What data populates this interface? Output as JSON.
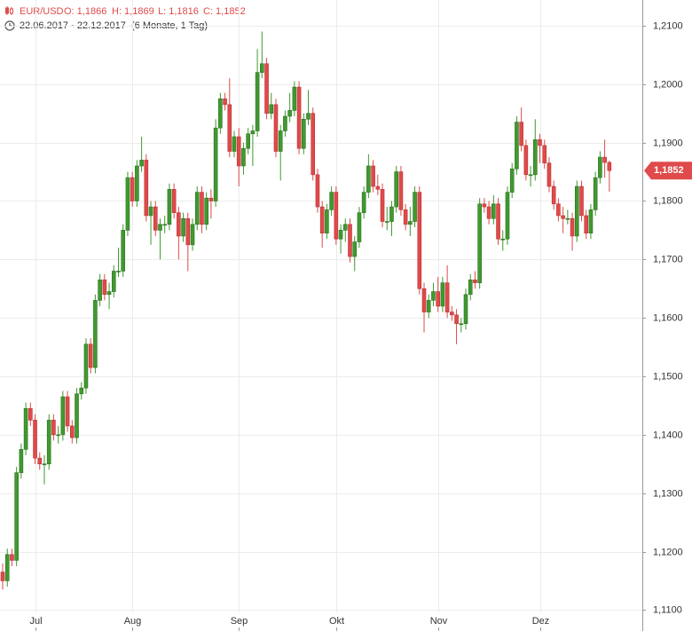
{
  "chart_data": {
    "type": "candlestick",
    "symbol": "EUR/USD",
    "open_label": "O: 1,1866",
    "high_label": "H: 1,1869",
    "low_label": "L: 1,1816",
    "close_label": "C: 1,1852",
    "date_range": "22.06.2017 - 22.12.2017",
    "period": "(6 Monate, 1 Tag)",
    "categories": [
      null,
      null,
      null,
      null,
      null,
      null,
      null,
      "Jul",
      null,
      null,
      null,
      null,
      null,
      null,
      null,
      null,
      null,
      null,
      null,
      null,
      null,
      null,
      null,
      null,
      null,
      null,
      null,
      null,
      "Aug",
      null,
      null,
      null,
      null,
      null,
      null,
      null,
      null,
      null,
      null,
      null,
      null,
      null,
      null,
      null,
      null,
      null,
      null,
      null,
      null,
      null,
      null,
      "Sep",
      null,
      null,
      null,
      null,
      null,
      null,
      null,
      null,
      null,
      null,
      null,
      null,
      null,
      null,
      null,
      null,
      null,
      null,
      null,
      null,
      "Okt",
      null,
      null,
      null,
      null,
      null,
      null,
      null,
      null,
      null,
      null,
      null,
      null,
      null,
      null,
      null,
      null,
      null,
      null,
      null,
      null,
      null,
      "Nov",
      null,
      null,
      null,
      null,
      null,
      null,
      null,
      null,
      null,
      null,
      null,
      null,
      null,
      null,
      null,
      null,
      null,
      null,
      null,
      null,
      null,
      "Dez",
      null,
      null,
      null,
      null,
      null,
      null,
      null,
      null,
      null,
      null,
      null,
      null,
      null,
      null,
      null
    ],
    "ohlc": [
      [
        1.1165,
        1.118,
        1.1135,
        1.115
      ],
      [
        1.115,
        1.1205,
        1.114,
        1.1195
      ],
      [
        1.1195,
        1.1205,
        1.1175,
        1.1185
      ],
      [
        1.1185,
        1.1345,
        1.1175,
        1.1335
      ],
      [
        1.1335,
        1.1385,
        1.1325,
        1.1375
      ],
      [
        1.1375,
        1.1455,
        1.1365,
        1.1445
      ],
      [
        1.1445,
        1.1455,
        1.1415,
        1.1425
      ],
      [
        1.1425,
        1.1435,
        1.135,
        1.136
      ],
      [
        1.136,
        1.137,
        1.134,
        1.135
      ],
      [
        1.135,
        1.1365,
        1.1315,
        1.135
      ],
      [
        1.135,
        1.1435,
        1.134,
        1.1425
      ],
      [
        1.1425,
        1.1435,
        1.139,
        1.14
      ],
      [
        1.14,
        1.1415,
        1.1385,
        1.14
      ],
      [
        1.14,
        1.1475,
        1.139,
        1.1465
      ],
      [
        1.1465,
        1.1475,
        1.1405,
        1.1415
      ],
      [
        1.1415,
        1.1425,
        1.1385,
        1.1395
      ],
      [
        1.1395,
        1.148,
        1.1385,
        1.147
      ],
      [
        1.147,
        1.149,
        1.146,
        1.148
      ],
      [
        1.148,
        1.1565,
        1.147,
        1.1555
      ],
      [
        1.1555,
        1.1565,
        1.1505,
        1.1515
      ],
      [
        1.1515,
        1.164,
        1.1505,
        1.163
      ],
      [
        1.163,
        1.1675,
        1.162,
        1.1665
      ],
      [
        1.1665,
        1.1675,
        1.163,
        1.164
      ],
      [
        1.164,
        1.166,
        1.1615,
        1.1645
      ],
      [
        1.1645,
        1.169,
        1.1635,
        1.168
      ],
      [
        1.168,
        1.172,
        1.167,
        1.168
      ],
      [
        1.168,
        1.176,
        1.167,
        1.175
      ],
      [
        1.175,
        1.185,
        1.174,
        1.184
      ],
      [
        1.184,
        1.185,
        1.179,
        1.18
      ],
      [
        1.18,
        1.187,
        1.179,
        1.186
      ],
      [
        1.186,
        1.191,
        1.185,
        1.187
      ],
      [
        1.187,
        1.188,
        1.1765,
        1.1775
      ],
      [
        1.1775,
        1.18,
        1.1725,
        1.179
      ],
      [
        1.179,
        1.18,
        1.174,
        1.175
      ],
      [
        1.175,
        1.177,
        1.17,
        1.176
      ],
      [
        1.176,
        1.1775,
        1.1745,
        1.176
      ],
      [
        1.176,
        1.183,
        1.175,
        1.182
      ],
      [
        1.182,
        1.183,
        1.177,
        1.178
      ],
      [
        1.178,
        1.179,
        1.17,
        1.174
      ],
      [
        1.174,
        1.178,
        1.173,
        1.177
      ],
      [
        1.177,
        1.178,
        1.168,
        1.1725
      ],
      [
        1.1725,
        1.177,
        1.1715,
        1.176
      ],
      [
        1.176,
        1.1825,
        1.175,
        1.1815
      ],
      [
        1.1815,
        1.1825,
        1.1745,
        1.176
      ],
      [
        1.176,
        1.1815,
        1.175,
        1.1805
      ],
      [
        1.1805,
        1.182,
        1.177,
        1.18
      ],
      [
        1.18,
        1.194,
        1.179,
        1.1925
      ],
      [
        1.1925,
        1.1985,
        1.1915,
        1.1975
      ],
      [
        1.1975,
        1.1985,
        1.1955,
        1.1965
      ],
      [
        1.1965,
        1.201,
        1.1875,
        1.1885
      ],
      [
        1.1885,
        1.192,
        1.1875,
        1.191
      ],
      [
        1.191,
        1.1925,
        1.1825,
        1.186
      ],
      [
        1.186,
        1.19,
        1.1845,
        1.189
      ],
      [
        1.189,
        1.1925,
        1.188,
        1.1915
      ],
      [
        1.1915,
        1.193,
        1.186,
        1.192
      ],
      [
        1.192,
        1.206,
        1.191,
        1.202
      ],
      [
        1.202,
        1.209,
        1.201,
        1.2035
      ],
      [
        1.2035,
        1.2045,
        1.194,
        1.195
      ],
      [
        1.195,
        1.1985,
        1.194,
        1.1965
      ],
      [
        1.1965,
        1.1975,
        1.1875,
        1.1885
      ],
      [
        1.1885,
        1.193,
        1.1835,
        1.192
      ],
      [
        1.192,
        1.1955,
        1.191,
        1.1945
      ],
      [
        1.1945,
        1.1985,
        1.1935,
        1.1955
      ],
      [
        1.1955,
        1.2005,
        1.1945,
        1.1995
      ],
      [
        1.1995,
        1.2005,
        1.188,
        1.189
      ],
      [
        1.189,
        1.195,
        1.188,
        1.194
      ],
      [
        1.194,
        1.199,
        1.193,
        1.195
      ],
      [
        1.195,
        1.196,
        1.1835,
        1.1845
      ],
      [
        1.1845,
        1.1855,
        1.178,
        1.179
      ],
      [
        1.179,
        1.18,
        1.172,
        1.1745
      ],
      [
        1.1745,
        1.1795,
        1.1735,
        1.1785
      ],
      [
        1.1785,
        1.1825,
        1.1775,
        1.1815
      ],
      [
        1.1815,
        1.1825,
        1.1725,
        1.1735
      ],
      [
        1.1735,
        1.176,
        1.171,
        1.175
      ],
      [
        1.175,
        1.177,
        1.173,
        1.176
      ],
      [
        1.176,
        1.177,
        1.1695,
        1.1705
      ],
      [
        1.1705,
        1.174,
        1.168,
        1.173
      ],
      [
        1.173,
        1.179,
        1.172,
        1.178
      ],
      [
        1.178,
        1.1825,
        1.177,
        1.1815
      ],
      [
        1.1815,
        1.188,
        1.1805,
        1.186
      ],
      [
        1.186,
        1.187,
        1.1815,
        1.1825
      ],
      [
        1.1825,
        1.1845,
        1.181,
        1.182
      ],
      [
        1.182,
        1.183,
        1.1755,
        1.1765
      ],
      [
        1.1765,
        1.179,
        1.175,
        1.1765
      ],
      [
        1.1765,
        1.18,
        1.174,
        1.179
      ],
      [
        1.179,
        1.186,
        1.178,
        1.185
      ],
      [
        1.185,
        1.186,
        1.1775,
        1.1785
      ],
      [
        1.1785,
        1.1795,
        1.175,
        1.176
      ],
      [
        1.176,
        1.179,
        1.174,
        1.1765
      ],
      [
        1.1765,
        1.1825,
        1.1755,
        1.1815
      ],
      [
        1.1815,
        1.1825,
        1.164,
        1.165
      ],
      [
        1.165,
        1.166,
        1.1575,
        1.161
      ],
      [
        1.161,
        1.164,
        1.16,
        1.163
      ],
      [
        1.163,
        1.166,
        1.162,
        1.1645
      ],
      [
        1.1645,
        1.167,
        1.161,
        1.162
      ],
      [
        1.162,
        1.167,
        1.161,
        1.166
      ],
      [
        1.166,
        1.169,
        1.16,
        1.161
      ],
      [
        1.161,
        1.162,
        1.1595,
        1.1605
      ],
      [
        1.1605,
        1.1615,
        1.1555,
        1.159
      ],
      [
        1.159,
        1.16,
        1.1575,
        1.159
      ],
      [
        1.159,
        1.165,
        1.158,
        1.164
      ],
      [
        1.164,
        1.1675,
        1.163,
        1.1665
      ],
      [
        1.1665,
        1.168,
        1.165,
        1.166
      ],
      [
        1.166,
        1.1805,
        1.165,
        1.1795
      ],
      [
        1.1795,
        1.1805,
        1.178,
        1.179
      ],
      [
        1.179,
        1.18,
        1.176,
        1.177
      ],
      [
        1.177,
        1.181,
        1.176,
        1.1795
      ],
      [
        1.1795,
        1.1805,
        1.1725,
        1.1735
      ],
      [
        1.1735,
        1.175,
        1.1715,
        1.1735
      ],
      [
        1.1735,
        1.1825,
        1.1725,
        1.1815
      ],
      [
        1.1815,
        1.1865,
        1.1805,
        1.1855
      ],
      [
        1.1855,
        1.1945,
        1.1845,
        1.1935
      ],
      [
        1.1935,
        1.196,
        1.1885,
        1.1895
      ],
      [
        1.1895,
        1.1905,
        1.1835,
        1.1845
      ],
      [
        1.1845,
        1.186,
        1.1825,
        1.1845
      ],
      [
        1.1845,
        1.194,
        1.1835,
        1.1905
      ],
      [
        1.1905,
        1.1915,
        1.1865,
        1.1895
      ],
      [
        1.1895,
        1.1905,
        1.1855,
        1.1865
      ],
      [
        1.1865,
        1.1875,
        1.1815,
        1.1825
      ],
      [
        1.1825,
        1.1835,
        1.1785,
        1.1795
      ],
      [
        1.1795,
        1.1805,
        1.1765,
        1.1775
      ],
      [
        1.1775,
        1.179,
        1.1745,
        1.177
      ],
      [
        1.177,
        1.1785,
        1.176,
        1.177
      ],
      [
        1.177,
        1.178,
        1.1715,
        1.174
      ],
      [
        1.174,
        1.1835,
        1.173,
        1.1825
      ],
      [
        1.1825,
        1.1835,
        1.1765,
        1.1775
      ],
      [
        1.1775,
        1.1785,
        1.1735,
        1.1745
      ],
      [
        1.1745,
        1.1795,
        1.1735,
        1.1785
      ],
      [
        1.1785,
        1.185,
        1.1775,
        1.184
      ],
      [
        1.184,
        1.1885,
        1.183,
        1.1875
      ],
      [
        1.1875,
        1.1905,
        1.184,
        1.1866
      ],
      [
        1.1866,
        1.1869,
        1.1816,
        1.1852
      ]
    ],
    "up_color": "#3f9a2f",
    "down_color": "#e04a4a",
    "ylim": [
      1.1096,
      1.2144
    ],
    "yticks": [
      {
        "value": 1.11,
        "label": "1,1100"
      },
      {
        "value": 1.12,
        "label": "1,1200"
      },
      {
        "value": 1.13,
        "label": "1,1300"
      },
      {
        "value": 1.14,
        "label": "1,1400"
      },
      {
        "value": 1.15,
        "label": "1,1500"
      },
      {
        "value": 1.16,
        "label": "1,1600"
      },
      {
        "value": 1.17,
        "label": "1,1700"
      },
      {
        "value": 1.18,
        "label": "1,1800"
      },
      {
        "value": 1.19,
        "label": "1,1900"
      },
      {
        "value": 1.2,
        "label": "1,2000"
      },
      {
        "value": 1.21,
        "label": "1,2100"
      }
    ],
    "grid": true,
    "last_price": {
      "value": 1.1852,
      "label": "1,1852"
    }
  }
}
